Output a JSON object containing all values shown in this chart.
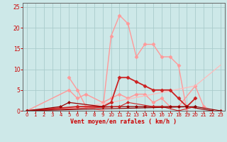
{
  "bg_color": "#cde8e8",
  "grid_color": "#aacccc",
  "xlabel": "Vent moyen/en rafales ( km/h )",
  "xlabel_color": "#cc0000",
  "tick_color": "#cc0000",
  "xlim": [
    -0.5,
    23.5
  ],
  "ylim": [
    0,
    26
  ],
  "yticks": [
    0,
    5,
    10,
    15,
    20,
    25
  ],
  "xticks": [
    0,
    1,
    2,
    3,
    4,
    5,
    6,
    7,
    8,
    9,
    10,
    11,
    12,
    13,
    14,
    15,
    16,
    17,
    18,
    19,
    20,
    21,
    22,
    23
  ],
  "lines": [
    {
      "x": [
        5,
        6,
        7,
        9,
        10,
        11,
        12,
        13,
        14,
        15,
        16,
        17,
        18,
        19
      ],
      "y": [
        8,
        5,
        1,
        0,
        18,
        23,
        21,
        13,
        16,
        16,
        13,
        13,
        11,
        0
      ],
      "color": "#ff9999",
      "marker": "D",
      "markersize": 2.5,
      "linewidth": 1.0
    },
    {
      "x": [
        0,
        5,
        6,
        7,
        9,
        10,
        11,
        12,
        13,
        14,
        15,
        16,
        17,
        18,
        20,
        21,
        22,
        23
      ],
      "y": [
        0,
        5,
        3,
        4,
        2,
        3,
        4,
        3,
        4,
        4,
        2,
        3,
        1,
        1,
        6,
        1,
        0,
        0
      ],
      "color": "#ff9999",
      "marker": "D",
      "markersize": 2.5,
      "linewidth": 1.0
    },
    {
      "x": [
        0,
        5,
        10,
        15,
        20,
        23
      ],
      "y": [
        0,
        0.5,
        2,
        4,
        6,
        11
      ],
      "color": "#ffbbbb",
      "marker": null,
      "markersize": 0,
      "linewidth": 0.9
    },
    {
      "x": [
        0,
        6,
        9,
        10,
        11,
        12,
        13,
        14,
        15,
        16,
        17,
        18,
        19,
        20
      ],
      "y": [
        0,
        1,
        1,
        2,
        8,
        8,
        7,
        6,
        5,
        5,
        5,
        3,
        1,
        3
      ],
      "color": "#cc2222",
      "marker": "D",
      "markersize": 2.5,
      "linewidth": 1.3
    },
    {
      "x": [
        0,
        4,
        5,
        9,
        10,
        11,
        12,
        13,
        14,
        15,
        16,
        17,
        18,
        19,
        22
      ],
      "y": [
        0,
        1,
        2,
        1,
        1,
        1,
        1,
        1,
        1,
        1,
        1,
        1,
        1,
        1,
        0
      ],
      "color": "#990000",
      "marker": "D",
      "markersize": 2.0,
      "linewidth": 0.9
    },
    {
      "x": [
        0,
        11,
        12,
        15,
        16,
        18,
        20
      ],
      "y": [
        0,
        1,
        2,
        1,
        1,
        0,
        1
      ],
      "color": "#cc2222",
      "marker": "D",
      "markersize": 2.0,
      "linewidth": 0.8
    },
    {
      "x": [
        0,
        20,
        23
      ],
      "y": [
        0,
        1,
        0
      ],
      "color": "#880000",
      "marker": "D",
      "markersize": 2.0,
      "linewidth": 0.8
    }
  ]
}
